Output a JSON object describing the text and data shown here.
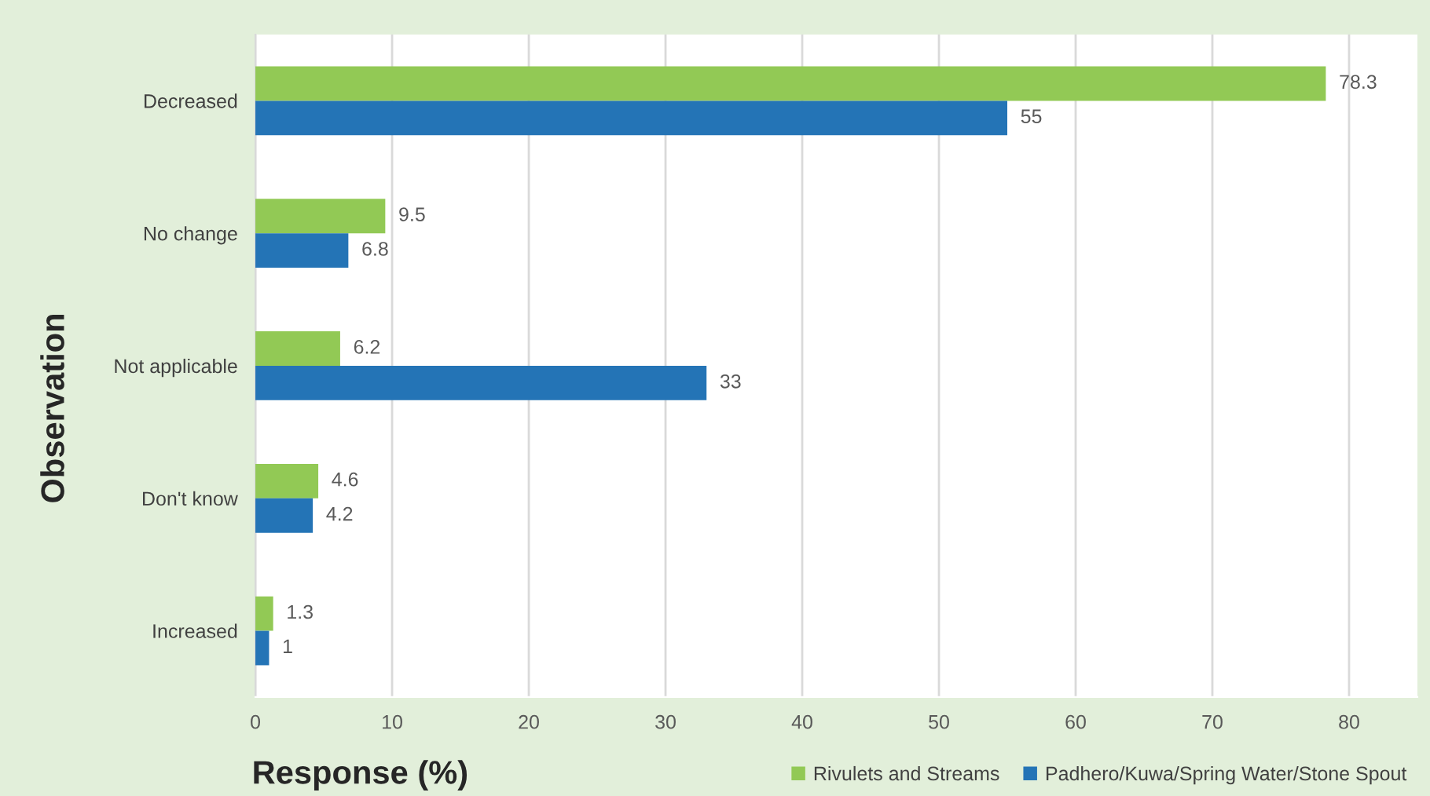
{
  "chart_data": {
    "type": "bar",
    "orientation": "horizontal",
    "xlabel": "Response (%)",
    "ylabel": "Observation",
    "categories": [
      "Decreased",
      "No change",
      "Not applicable",
      "Don't know",
      "Increased"
    ],
    "series": [
      {
        "name": "Rivulets and Streams",
        "color": "#92c955",
        "values": [
          78.3,
          9.5,
          6.2,
          4.6,
          1.3
        ]
      },
      {
        "name": "Padhero/Kuwa/Spring Water/Stone Spout",
        "color": "#2474b6",
        "values": [
          55,
          6.8,
          33,
          4.2,
          1
        ]
      }
    ],
    "xlim": [
      0,
      85
    ],
    "xticks": [
      0,
      10,
      20,
      30,
      40,
      50,
      60,
      70,
      80
    ],
    "grid": "x",
    "legend": "bottom right",
    "data_labels": true
  }
}
